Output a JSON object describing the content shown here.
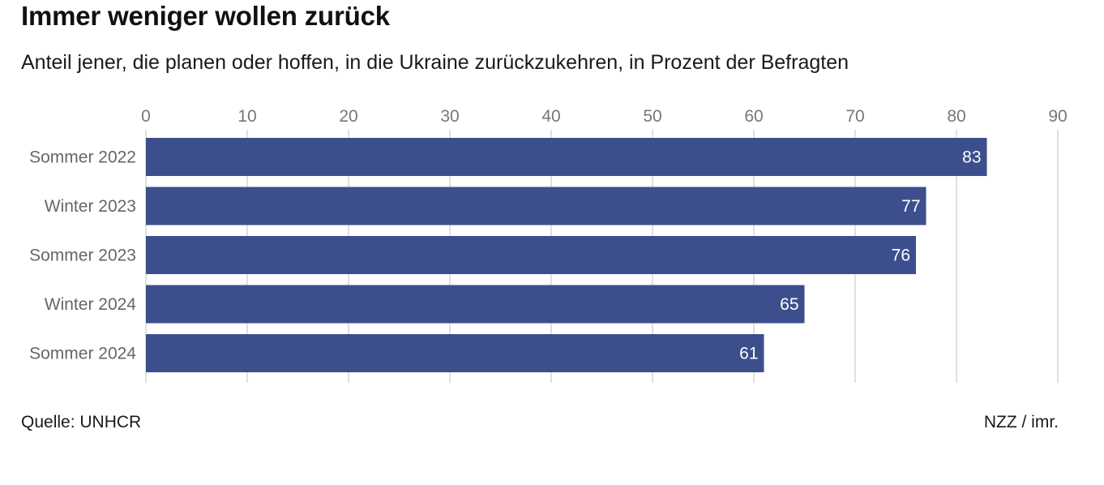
{
  "title": "Immer weniger wollen zurück",
  "subtitle": "Anteil jener, die planen oder hoffen, in die Ukraine zurückzukehren, in Prozent der Befragten",
  "source": "Quelle: UNHCR",
  "credit": "NZZ / imr.",
  "colors": {
    "bar": "#3c4f8c",
    "grid": "#d5d5d5",
    "tick_text": "#777777",
    "category_text": "#666666",
    "value_label": "#ffffff"
  },
  "chart_data": {
    "type": "bar",
    "orientation": "horizontal",
    "categories": [
      "Sommer 2022",
      "Winter 2023",
      "Sommer 2023",
      "Winter 2024",
      "Sommer 2024"
    ],
    "values": [
      83,
      77,
      76,
      65,
      61
    ],
    "xlim": [
      0,
      90
    ],
    "xticks": [
      0,
      10,
      20,
      30,
      40,
      50,
      60,
      70,
      80,
      90
    ],
    "x_axis_position": "top",
    "grid": true,
    "data_labels": [
      "83",
      "77",
      "76",
      "65",
      "61"
    ]
  }
}
